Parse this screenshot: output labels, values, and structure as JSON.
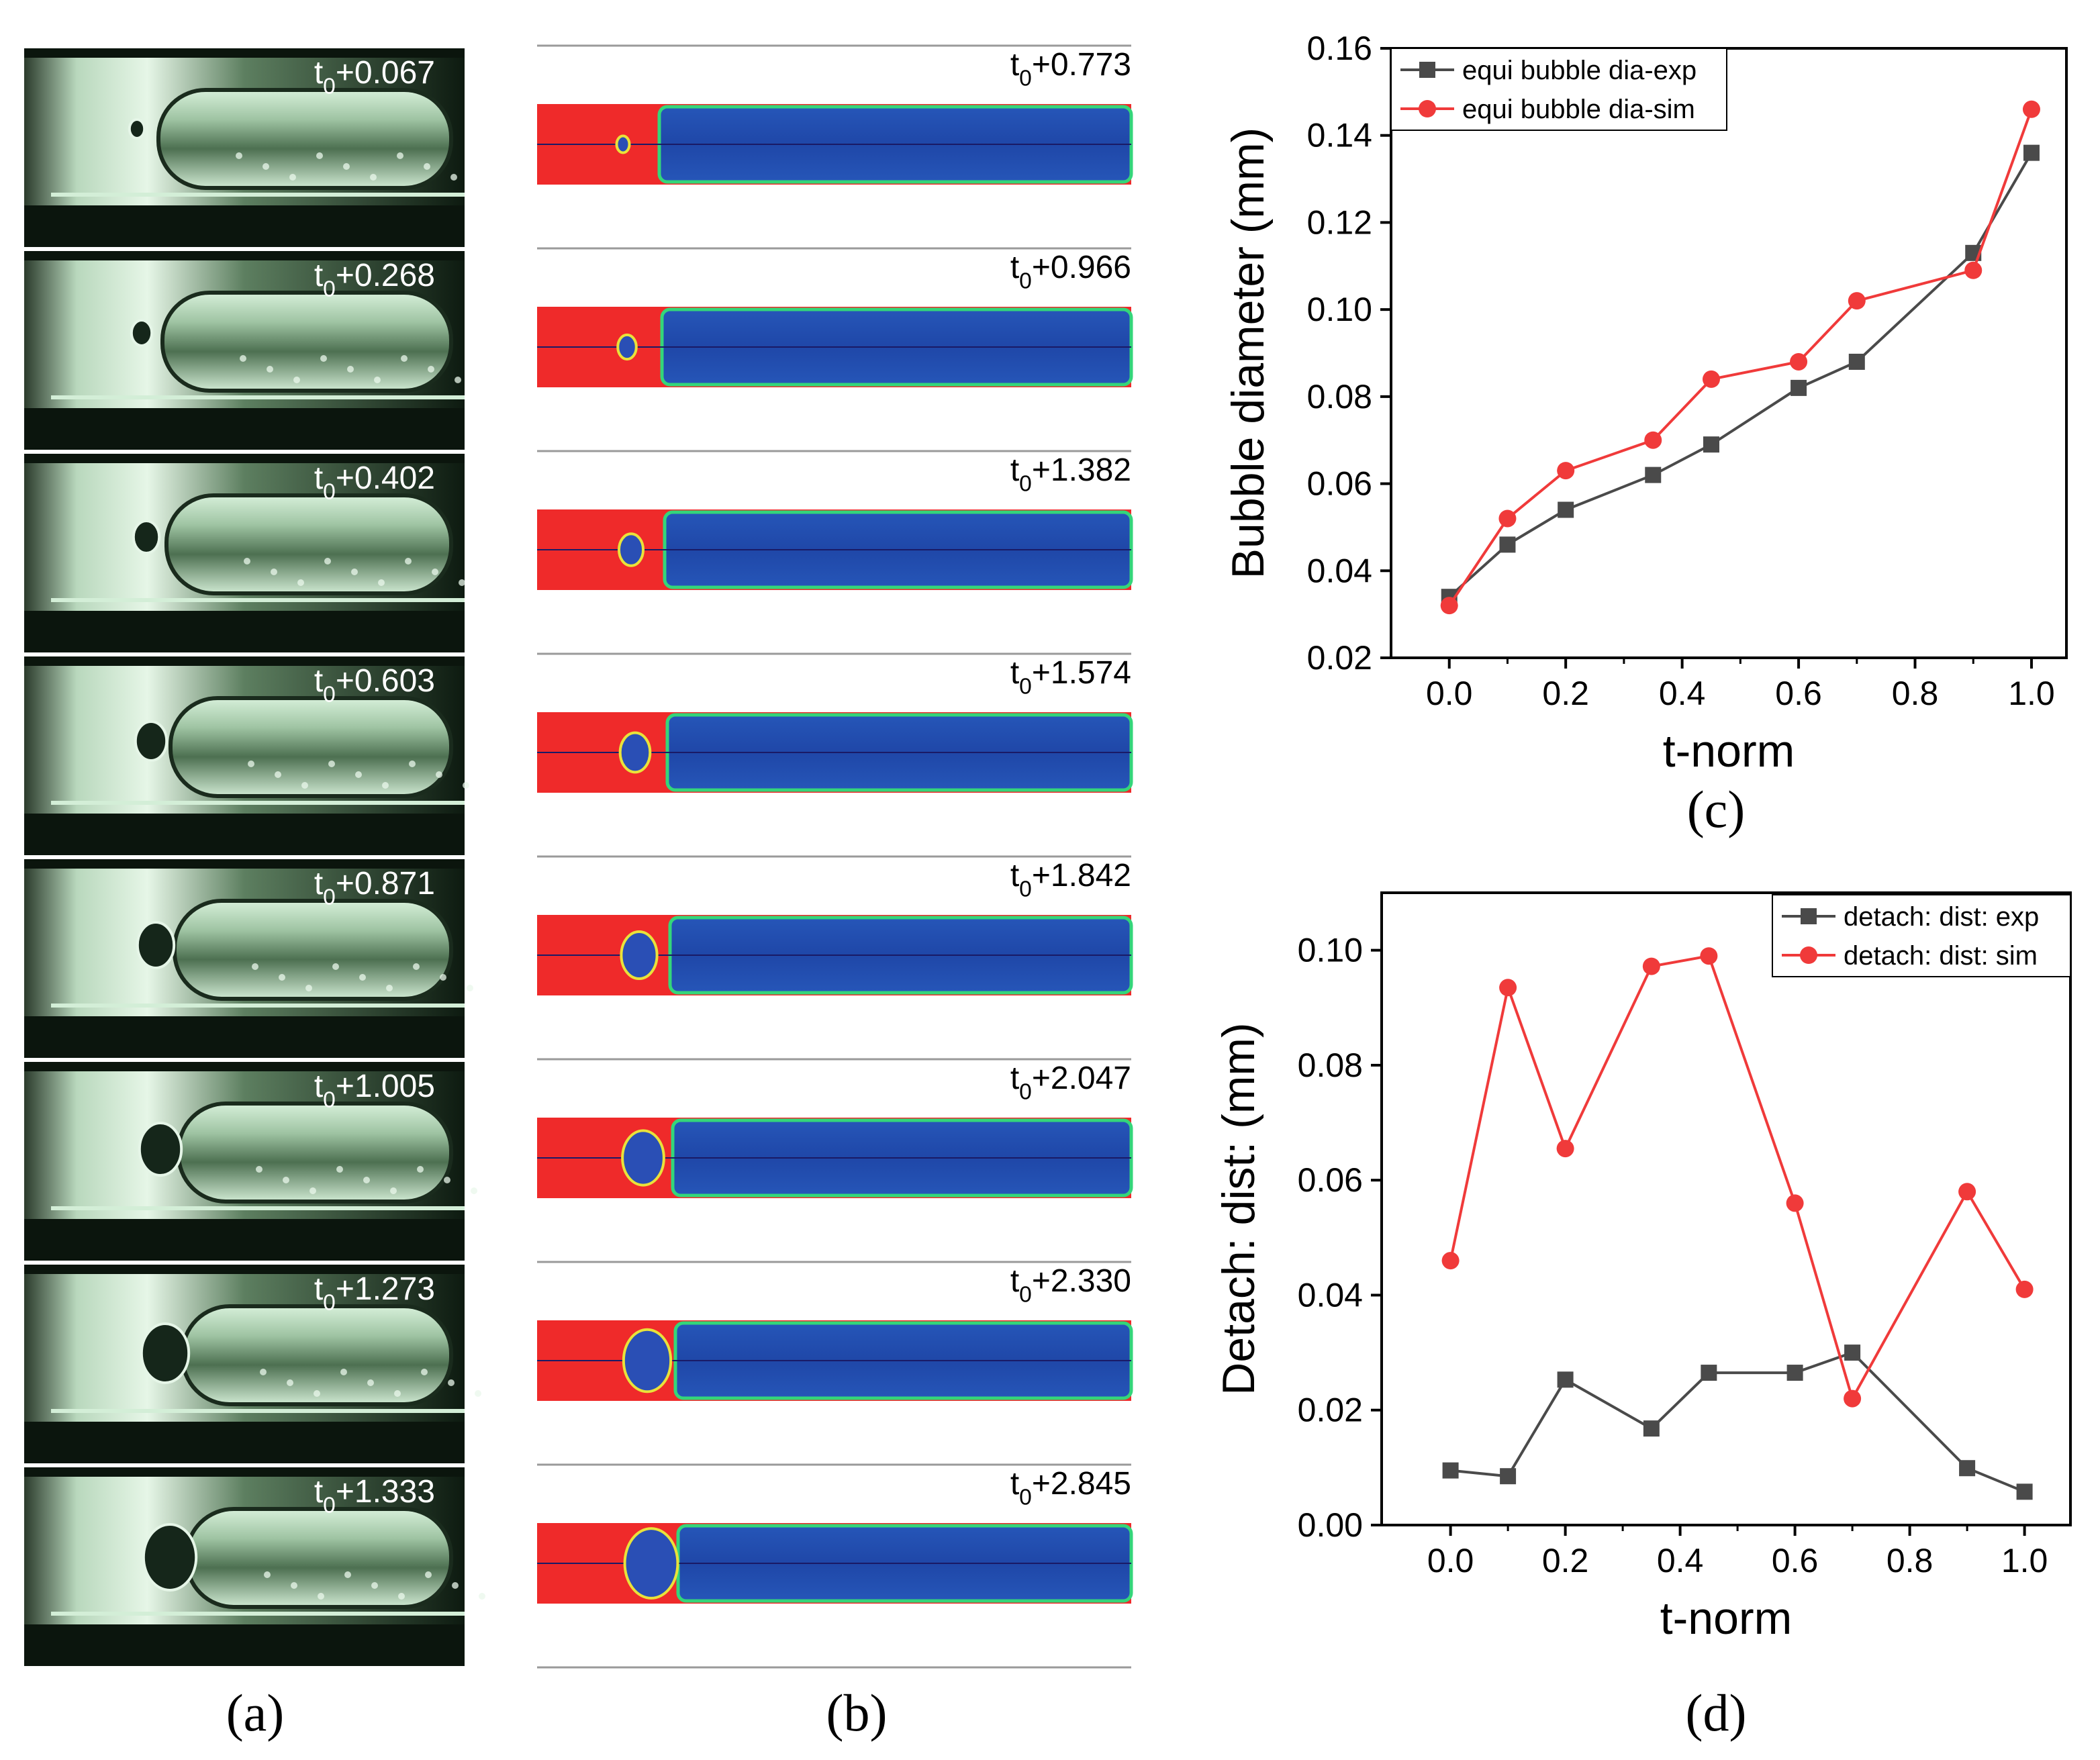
{
  "panel_labels": {
    "a": "(a)",
    "b": "(b)",
    "c": "(c)",
    "d": "(d)"
  },
  "experiment_frames": [
    {
      "t0": "t",
      "sub": "0",
      "offset": "+0.067"
    },
    {
      "t0": "t",
      "sub": "0",
      "offset": "+0.268"
    },
    {
      "t0": "t",
      "sub": "0",
      "offset": "+0.402"
    },
    {
      "t0": "t",
      "sub": "0",
      "offset": "+0.603"
    },
    {
      "t0": "t",
      "sub": "0",
      "offset": "+0.871"
    },
    {
      "t0": "t",
      "sub": "0",
      "offset": "+1.005"
    },
    {
      "t0": "t",
      "sub": "0",
      "offset": "+1.273"
    },
    {
      "t0": "t",
      "sub": "0",
      "offset": "+1.333"
    }
  ],
  "simulation_frames": [
    {
      "t0": "t",
      "sub": "0",
      "offset": "+0.773"
    },
    {
      "t0": "t",
      "sub": "0",
      "offset": "+0.966"
    },
    {
      "t0": "t",
      "sub": "0",
      "offset": "+1.382"
    },
    {
      "t0": "t",
      "sub": "0",
      "offset": "+1.574"
    },
    {
      "t0": "t",
      "sub": "0",
      "offset": "+1.842"
    },
    {
      "t0": "t",
      "sub": "0",
      "offset": "+2.047"
    },
    {
      "t0": "t",
      "sub": "0",
      "offset": "+2.330"
    },
    {
      "t0": "t",
      "sub": "0",
      "offset": "+2.845"
    }
  ],
  "colors": {
    "exp_series": "#4a4a4a",
    "sim_series": "#f03a3a",
    "liquid": "#ef2a2a",
    "vapor": "#2a4fb5",
    "photo_dark": "#0e1e12",
    "photo_light": "#d9f2de"
  },
  "chart_data": [
    {
      "type": "line",
      "panel": "(c)",
      "title": "",
      "xlabel": "t-norm",
      "ylabel": "Bubble diameter (mm)",
      "xlim": [
        -0.1,
        1.06
      ],
      "ylim": [
        0.02,
        0.16
      ],
      "xticks": [
        "0.0",
        "0.2",
        "0.4",
        "0.6",
        "0.8",
        "1.0"
      ],
      "yticks": [
        "0.02",
        "0.04",
        "0.06",
        "0.08",
        "0.10",
        "0.12",
        "0.14",
        "0.16"
      ],
      "legend_position": "top-left",
      "series": [
        {
          "name": "equi bubble dia-exp",
          "marker": "square",
          "color": "#4a4a4a",
          "x": [
            0.0,
            0.1,
            0.2,
            0.35,
            0.45,
            0.6,
            0.7,
            0.9,
            1.0
          ],
          "y": [
            0.034,
            0.046,
            0.054,
            0.062,
            0.069,
            0.082,
            0.088,
            0.113,
            0.136
          ]
        },
        {
          "name": "equi bubble dia-sim",
          "marker": "circle",
          "color": "#f03a3a",
          "x": [
            0.0,
            0.1,
            0.2,
            0.35,
            0.45,
            0.6,
            0.7,
            0.9,
            1.0
          ],
          "y": [
            0.032,
            0.052,
            0.063,
            0.07,
            0.084,
            0.088,
            0.102,
            0.109,
            0.146
          ]
        }
      ]
    },
    {
      "type": "line",
      "panel": "(d)",
      "title": "",
      "xlabel": "t-norm",
      "ylabel": "Detach: dist: (mm)",
      "xlim": [
        -0.12,
        1.08
      ],
      "ylim": [
        0.0,
        0.11
      ],
      "xticks": [
        "0.0",
        "0.2",
        "0.4",
        "0.6",
        "0.8",
        "1.0"
      ],
      "yticks": [
        "0.00",
        "0.02",
        "0.04",
        "0.06",
        "0.08",
        "0.10"
      ],
      "legend_position": "top-right",
      "series": [
        {
          "name": "detach: dist: exp",
          "marker": "square",
          "color": "#4a4a4a",
          "x": [
            0.0,
            0.1,
            0.2,
            0.35,
            0.45,
            0.6,
            0.7,
            0.9,
            1.0
          ],
          "y": [
            0.0095,
            0.0085,
            0.0253,
            0.0168,
            0.0265,
            0.0265,
            0.03,
            0.0099,
            0.0058
          ]
        },
        {
          "name": "detach: dist: sim",
          "marker": "circle",
          "color": "#f03a3a",
          "x": [
            0.0,
            0.1,
            0.2,
            0.35,
            0.45,
            0.6,
            0.7,
            0.9,
            1.0
          ],
          "y": [
            0.046,
            0.0935,
            0.0655,
            0.0972,
            0.099,
            0.056,
            0.022,
            0.058,
            0.041
          ]
        }
      ]
    }
  ]
}
